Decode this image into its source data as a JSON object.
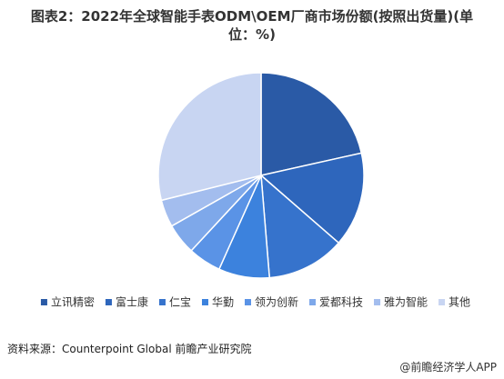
{
  "chart_data": {
    "type": "pie",
    "title": "图表2：2022年全球智能手表ODM\\OEM厂商市场份额(按照出货量)(单位：%)",
    "categories": [
      "立讯精密",
      "富士康",
      "仁宝",
      "华勤",
      "领为创新",
      "爱都科技",
      "雅为智能",
      "其他"
    ],
    "values": [
      21.5,
      14.9,
      12.3,
      8,
      5.2,
      4.9,
      4.3,
      28.9
    ],
    "colors": [
      "#2a5aa6",
      "#2e66bc",
      "#3673cc",
      "#3c82dd",
      "#5a93e6",
      "#7ea8ea",
      "#a3bdee",
      "#c8d5f2"
    ],
    "legend": "bottom"
  },
  "source": "资料来源：Counterpoint Global 前瞻产业研究院",
  "footer": "@前瞻经济学人APP"
}
